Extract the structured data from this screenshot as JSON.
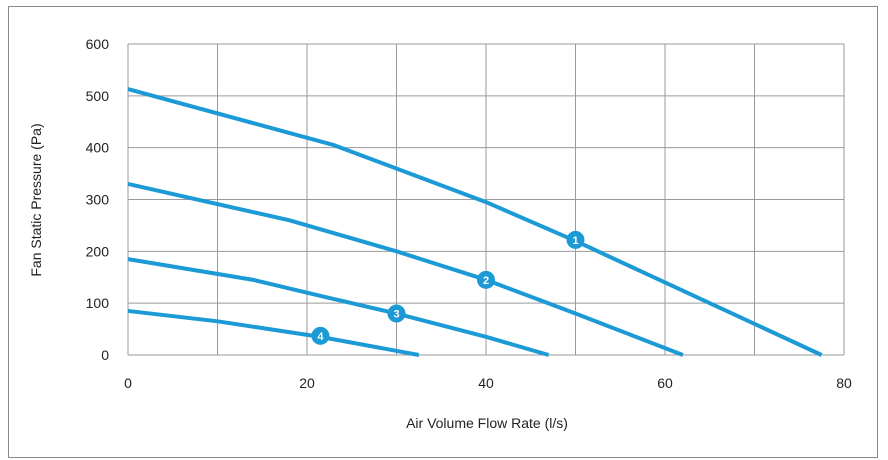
{
  "chart_data": {
    "type": "line",
    "title": "",
    "xlabel": "Air Volume Flow Rate (l/s)",
    "ylabel": "Fan Static Pressure (Pa)",
    "xlim": [
      0,
      80
    ],
    "ylim": [
      0,
      600
    ],
    "x_ticks": [
      "0",
      "20",
      "40",
      "60",
      "80"
    ],
    "y_ticks": [
      "0",
      "100",
      "200",
      "300",
      "400",
      "500",
      "600"
    ],
    "x_grid_step": 10,
    "y_grid_step": 100,
    "grid": true,
    "line_color": "#1b9ad6",
    "series": [
      {
        "label": "1",
        "x": [
          0,
          23,
          40,
          50,
          60,
          77.5
        ],
        "y": [
          513,
          405,
          295,
          220,
          140,
          0
        ],
        "marker_x": 50,
        "marker_y": 222
      },
      {
        "label": "2",
        "x": [
          0,
          18,
          30,
          40,
          50,
          62
        ],
        "y": [
          330,
          260,
          200,
          145,
          80,
          0
        ],
        "marker_x": 40,
        "marker_y": 145
      },
      {
        "label": "3",
        "x": [
          0,
          14,
          22,
          30,
          40,
          47
        ],
        "y": [
          185,
          145,
          112,
          80,
          35,
          0
        ],
        "marker_x": 30,
        "marker_y": 80
      },
      {
        "label": "4",
        "x": [
          0,
          10,
          21.5,
          32.5
        ],
        "y": [
          85,
          65,
          35,
          0
        ],
        "marker_x": 21.5,
        "marker_y": 37
      }
    ]
  }
}
